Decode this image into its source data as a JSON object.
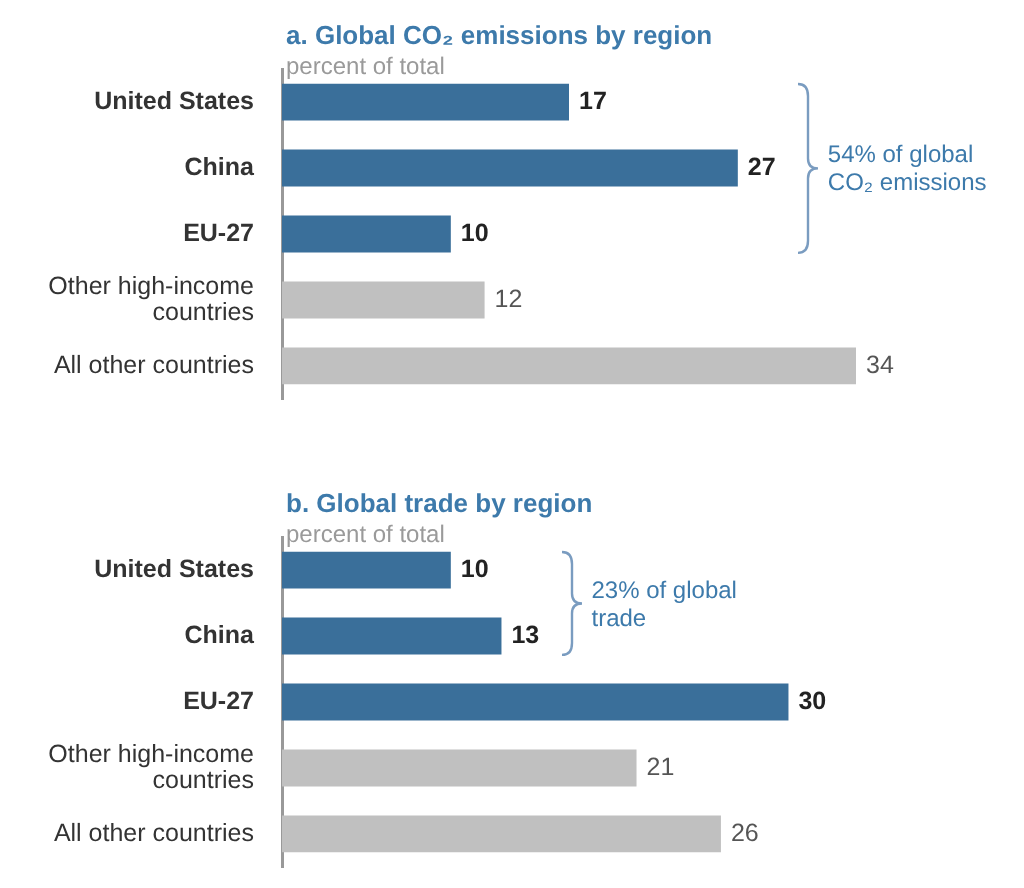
{
  "chart_data": [
    {
      "type": "bar",
      "orientation": "horizontal",
      "title": "a. Global CO₂ emissions by region",
      "subtitle": "percent of total",
      "categories": [
        "United States",
        "China",
        "EU-27",
        "Other high-income countries",
        "All other countries"
      ],
      "values": [
        17,
        27,
        10,
        12,
        34
      ],
      "colors": [
        "#3a6f9a",
        "#3a6f9a",
        "#3a6f9a",
        "#c0c0c0",
        "#c0c0c0"
      ],
      "data_labels": true,
      "tick_labels": "y",
      "annotations": [
        "54% of global CO₂ emissions"
      ]
    },
    {
      "type": "bar",
      "orientation": "horizontal",
      "title": "b. Global trade by region",
      "subtitle": "percent of total",
      "categories": [
        "United States",
        "China",
        "EU-27",
        "Other high-income countries",
        "All other countries"
      ],
      "values": [
        10,
        13,
        30,
        21,
        26
      ],
      "colors": [
        "#3a6f9a",
        "#3a6f9a",
        "#3a6f9a",
        "#c0c0c0",
        "#c0c0c0"
      ],
      "data_labels": true,
      "tick_labels": "y",
      "annotations": [
        "23% of global trade"
      ]
    }
  ]
}
